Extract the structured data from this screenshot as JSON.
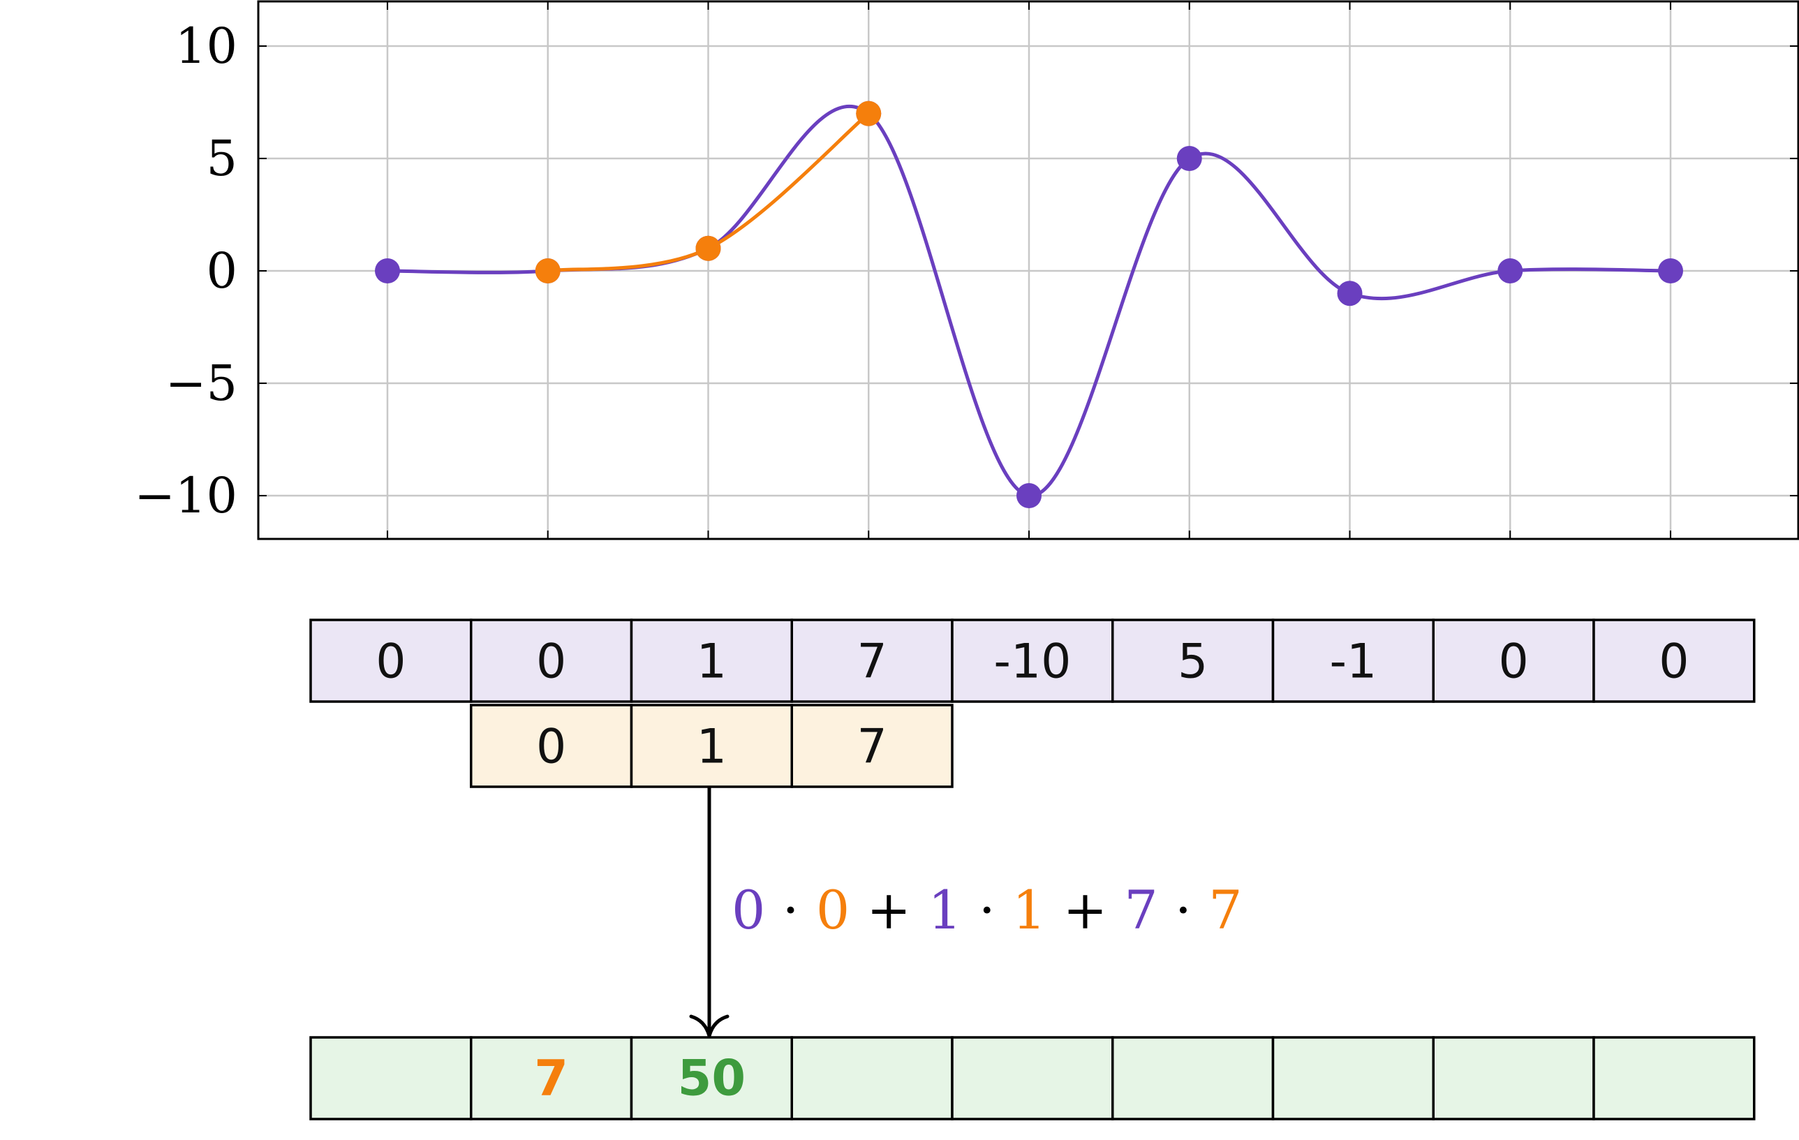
{
  "chart_data": {
    "type": "line",
    "x": [
      0,
      1,
      2,
      3,
      4,
      5,
      6,
      7,
      8
    ],
    "ylim": [
      -12,
      12
    ],
    "yticks": [
      10,
      5,
      0,
      -5,
      -10
    ],
    "ytick_labels": [
      "10",
      "5",
      "0",
      "−5",
      "−10"
    ],
    "grid": true,
    "series": [
      {
        "values": [
          0,
          0,
          1,
          7,
          -10,
          5,
          -1,
          0,
          0
        ],
        "color": "#6a3fbf",
        "smooth": true
      },
      {
        "x": [
          1,
          2,
          3
        ],
        "values": [
          0,
          1,
          7
        ],
        "color": "#f57f0c",
        "smooth": true
      }
    ]
  },
  "signal": {
    "cells": [
      "0",
      "0",
      "1",
      "7",
      "-10",
      "5",
      "-1",
      "0",
      "0"
    ],
    "fill": "#ebe6f5"
  },
  "kernel": {
    "start_index": 1,
    "cells": [
      "0",
      "1",
      "7"
    ],
    "fill": "#fdf2df"
  },
  "formula": {
    "terms": [
      {
        "text": "0",
        "color": "#6a3fbf"
      },
      {
        "text": " · ",
        "color": "#000000"
      },
      {
        "text": "0",
        "color": "#f57f0c"
      },
      {
        "text": " + ",
        "color": "#000000"
      },
      {
        "text": "1",
        "color": "#6a3fbf"
      },
      {
        "text": " · ",
        "color": "#000000"
      },
      {
        "text": "1",
        "color": "#f57f0c"
      },
      {
        "text": " + ",
        "color": "#000000"
      },
      {
        "text": "7",
        "color": "#6a3fbf"
      },
      {
        "text": " · ",
        "color": "#000000"
      },
      {
        "text": "7",
        "color": "#f57f0c"
      }
    ]
  },
  "output": {
    "fill": "#e6f5e6",
    "cells": [
      {
        "text": "",
        "color": "#000000"
      },
      {
        "text": "7",
        "color": "#f57f0c"
      },
      {
        "text": "50",
        "color": "#3e9b3e"
      },
      {
        "text": "",
        "color": "#000000"
      },
      {
        "text": "",
        "color": "#000000"
      },
      {
        "text": "",
        "color": "#000000"
      },
      {
        "text": "",
        "color": "#000000"
      },
      {
        "text": "",
        "color": "#000000"
      },
      {
        "text": "",
        "color": "#000000"
      }
    ]
  }
}
